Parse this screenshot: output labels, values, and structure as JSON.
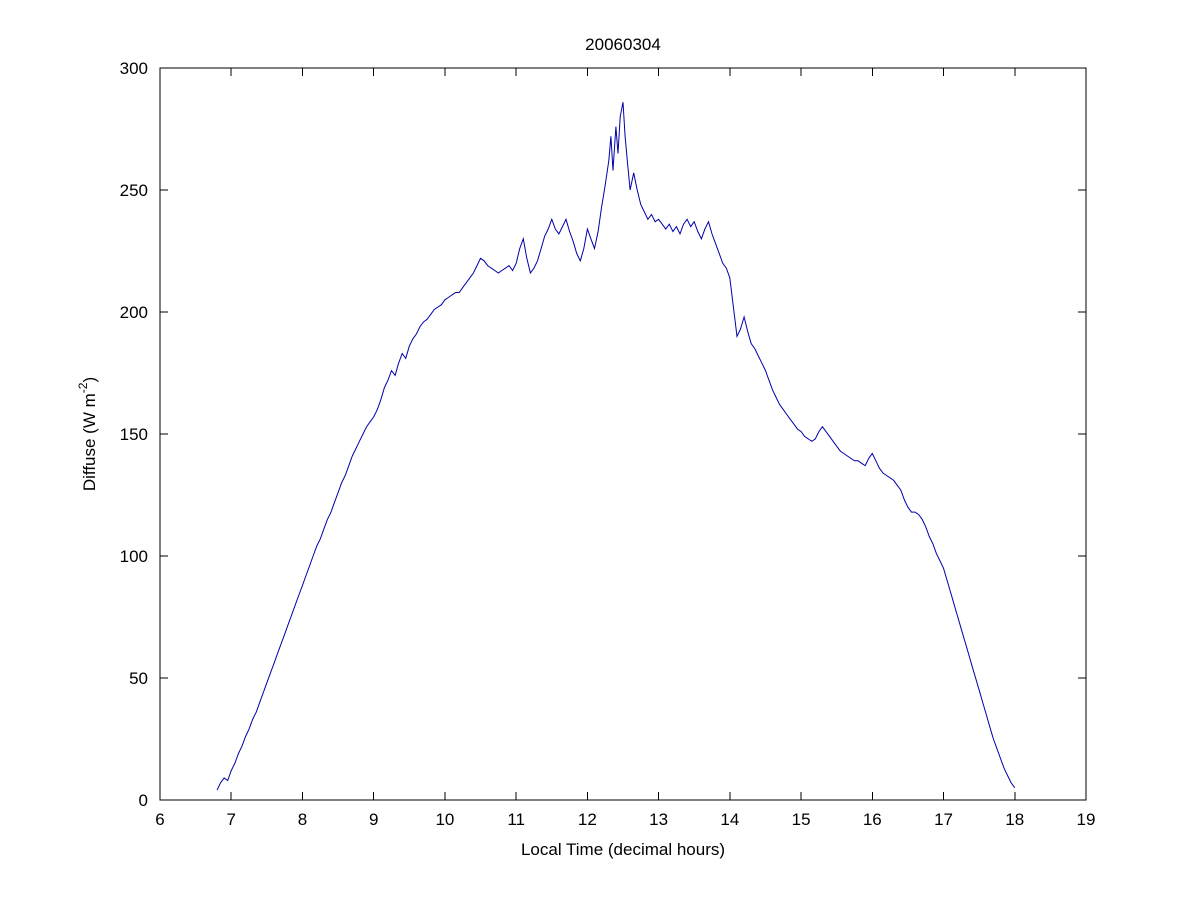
{
  "page": {
    "background_color": "#ffffff"
  },
  "chart_data": {
    "type": "line",
    "title": "20060304",
    "xlabel": "Local Time (decimal hours)",
    "ylabel": "Diffuse (W m^-2)",
    "ylabel_parts": [
      {
        "text": "Diffuse (W m",
        "sup": false
      },
      {
        "text": "-2",
        "sup": true
      },
      {
        "text": ")",
        "sup": false
      }
    ],
    "xlim": [
      6,
      19
    ],
    "ylim": [
      0,
      300
    ],
    "xticks": [
      6,
      7,
      8,
      9,
      10,
      11,
      12,
      13,
      14,
      15,
      16,
      17,
      18,
      19
    ],
    "yticks": [
      0,
      50,
      100,
      150,
      200,
      250,
      300
    ],
    "grid": false,
    "legend_position": "none",
    "line_color": "#0000AA",
    "axis_color": "#000000",
    "series": [
      {
        "name": "diffuse",
        "x": [
          6.8,
          6.85,
          6.9,
          6.95,
          7.0,
          7.05,
          7.1,
          7.15,
          7.2,
          7.25,
          7.3,
          7.35,
          7.4,
          7.45,
          7.5,
          7.55,
          7.6,
          7.65,
          7.7,
          7.75,
          7.8,
          7.85,
          7.9,
          7.95,
          8.0,
          8.05,
          8.1,
          8.15,
          8.2,
          8.25,
          8.3,
          8.35,
          8.4,
          8.45,
          8.5,
          8.55,
          8.6,
          8.65,
          8.7,
          8.75,
          8.8,
          8.85,
          8.9,
          8.95,
          9.0,
          9.05,
          9.1,
          9.15,
          9.2,
          9.25,
          9.3,
          9.35,
          9.4,
          9.45,
          9.5,
          9.55,
          9.6,
          9.65,
          9.7,
          9.75,
          9.8,
          9.85,
          9.9,
          9.95,
          10.0,
          10.05,
          10.1,
          10.15,
          10.2,
          10.25,
          10.3,
          10.35,
          10.4,
          10.45,
          10.5,
          10.55,
          10.6,
          10.65,
          10.7,
          10.75,
          10.8,
          10.85,
          10.9,
          10.95,
          11.0,
          11.05,
          11.1,
          11.15,
          11.2,
          11.25,
          11.3,
          11.35,
          11.4,
          11.45,
          11.5,
          11.55,
          11.6,
          11.65,
          11.7,
          11.75,
          11.8,
          11.85,
          11.9,
          11.95,
          12.0,
          12.05,
          12.1,
          12.15,
          12.2,
          12.25,
          12.3,
          12.33,
          12.36,
          12.4,
          12.43,
          12.46,
          12.5,
          12.53,
          12.56,
          12.6,
          12.65,
          12.7,
          12.75,
          12.8,
          12.85,
          12.9,
          12.95,
          13.0,
          13.05,
          13.1,
          13.15,
          13.2,
          13.25,
          13.3,
          13.35,
          13.4,
          13.45,
          13.5,
          13.55,
          13.6,
          13.65,
          13.7,
          13.75,
          13.8,
          13.85,
          13.9,
          13.95,
          14.0,
          14.05,
          14.1,
          14.15,
          14.2,
          14.25,
          14.3,
          14.35,
          14.4,
          14.45,
          14.5,
          14.55,
          14.6,
          14.65,
          14.7,
          14.75,
          14.8,
          14.85,
          14.9,
          14.95,
          15.0,
          15.05,
          15.1,
          15.15,
          15.2,
          15.25,
          15.3,
          15.35,
          15.4,
          15.45,
          15.5,
          15.55,
          15.6,
          15.65,
          15.7,
          15.75,
          15.8,
          15.85,
          15.9,
          15.95,
          16.0,
          16.05,
          16.1,
          16.15,
          16.2,
          16.25,
          16.3,
          16.35,
          16.4,
          16.45,
          16.5,
          16.55,
          16.6,
          16.65,
          16.7,
          16.75,
          16.8,
          16.85,
          16.9,
          16.95,
          17.0,
          17.05,
          17.1,
          17.15,
          17.2,
          17.25,
          17.3,
          17.35,
          17.4,
          17.45,
          17.5,
          17.55,
          17.6,
          17.65,
          17.7,
          17.75,
          17.8,
          17.85,
          17.9,
          17.95,
          18.0
        ],
        "y": [
          4,
          7,
          9,
          8,
          12,
          15,
          19,
          22,
          26,
          29,
          33,
          36,
          40,
          44,
          48,
          52,
          56,
          60,
          64,
          68,
          72,
          76,
          80,
          84,
          88,
          92,
          96,
          100,
          104,
          107,
          111,
          115,
          118,
          122,
          126,
          130,
          133,
          137,
          141,
          144,
          147,
          150,
          153,
          155,
          157,
          160,
          164,
          169,
          172,
          176,
          174,
          179,
          183,
          181,
          186,
          189,
          191,
          194,
          196,
          197,
          199,
          201,
          202,
          203,
          205,
          206,
          207,
          208,
          208,
          210,
          212,
          214,
          216,
          219,
          222,
          221,
          219,
          218,
          217,
          216,
          217,
          218,
          219,
          217,
          220,
          226,
          230,
          222,
          216,
          218,
          221,
          226,
          231,
          234,
          238,
          234,
          232,
          235,
          238,
          233,
          229,
          224,
          221,
          226,
          234,
          230,
          226,
          233,
          243,
          252,
          262,
          272,
          258,
          276,
          265,
          280,
          286,
          272,
          262,
          250,
          257,
          250,
          244,
          241,
          238,
          240,
          237,
          238,
          236,
          234,
          236,
          233,
          235,
          232,
          236,
          238,
          235,
          237,
          233,
          230,
          234,
          237,
          232,
          228,
          224,
          220,
          218,
          214,
          202,
          190,
          193,
          198,
          192,
          187,
          185,
          182,
          179,
          176,
          172,
          168,
          165,
          162,
          160,
          158,
          156,
          154,
          152,
          151,
          149,
          148,
          147,
          148,
          151,
          153,
          151,
          149,
          147,
          145,
          143,
          142,
          141,
          140,
          139,
          139,
          138,
          137,
          140,
          142,
          139,
          136,
          134,
          133,
          132,
          131,
          129,
          127,
          123,
          120,
          118,
          118,
          117,
          115,
          112,
          108,
          105,
          101,
          98,
          95,
          90,
          85,
          80,
          75,
          70,
          65,
          60,
          55,
          50,
          45,
          40,
          35,
          30,
          25,
          21,
          17,
          13,
          10,
          7,
          5
        ]
      }
    ]
  }
}
